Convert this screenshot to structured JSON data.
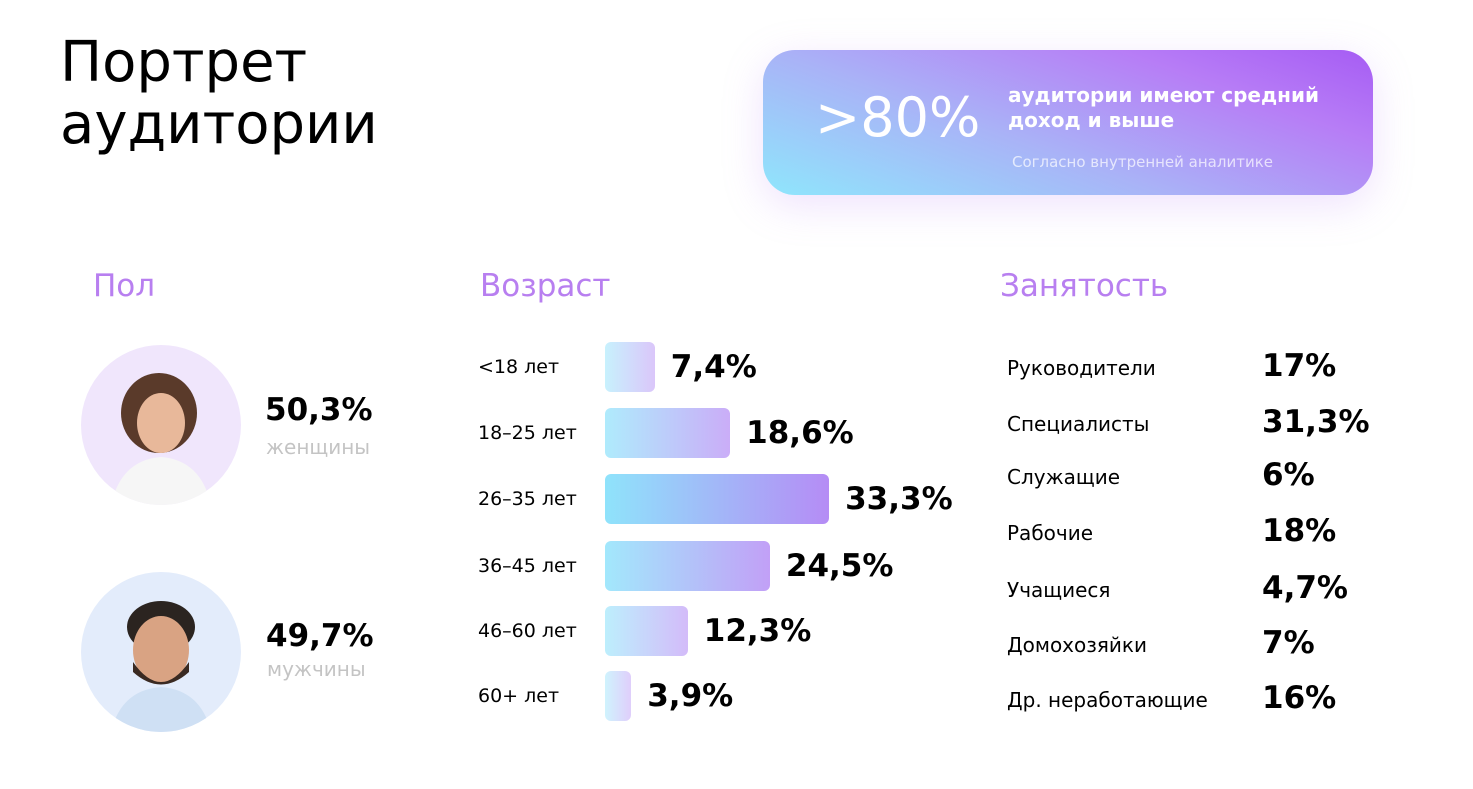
{
  "header": {
    "title_line1": "Портрет",
    "title_line2": "аудитории"
  },
  "highlight": {
    "value": ">80%",
    "text_line1": "аудитории имеют средний",
    "text_line2": "доход и выше",
    "source": "Согласно внутренней аналитике"
  },
  "gender": {
    "title": "Пол",
    "items": [
      {
        "value": "50,3%",
        "label": "женщины"
      },
      {
        "value": "49,7%",
        "label": "мужчины"
      }
    ]
  },
  "chart_data": {
    "type": "bar",
    "orientation": "horizontal",
    "title": "Возраст",
    "categories": [
      "<18 лет",
      "18–25 лет",
      "26–35 лет",
      "36–45 лет",
      "46–60 лет",
      "60+ лет"
    ],
    "values": [
      7.4,
      18.6,
      33.3,
      24.5,
      12.3,
      3.9
    ],
    "value_labels": [
      "7,4%",
      "18,6%",
      "33,3%",
      "24,5%",
      "12,3%",
      "3,9%"
    ],
    "colors": [
      "#8fe3fb",
      "#b58cf5"
    ]
  },
  "employment": {
    "title": "Занятость",
    "rows": [
      [
        "Руководители",
        "17%"
      ],
      [
        "Специалисты",
        "31,3%"
      ],
      [
        "Служащие",
        "6%"
      ],
      [
        "Рабочие",
        "18%"
      ],
      [
        "Учащиеся",
        "4,7%"
      ],
      [
        "Домохозяйки",
        "7%"
      ],
      [
        "Др. неработающие",
        "16%"
      ]
    ]
  }
}
